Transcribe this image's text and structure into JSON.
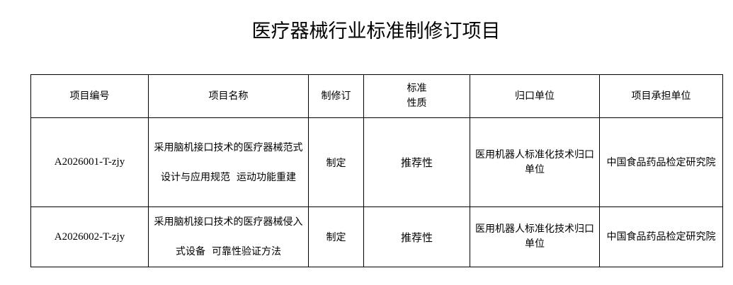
{
  "title": "医疗器械行业标准制修订项目",
  "table": {
    "headers": [
      "项目编号",
      "项目名称",
      "制修订",
      "标准\n性质",
      "归口单位",
      "项目承担单位"
    ],
    "rows": [
      {
        "id": "A2026001-T-zjy",
        "name": "采用脑机接口技术的医疗器械范式设计与应用规范  运动功能重建",
        "type": "制定",
        "nature": "推荐性",
        "unit": "医用机器人标准化技术归口单位",
        "org": "中国食品药品检定研究院"
      },
      {
        "id": "A2026002-T-zjy",
        "name": "采用脑机接口技术的医疗器械侵入式设备  可靠性验证方法",
        "type": "制定",
        "nature": "推荐性",
        "unit": "医用机器人标准化技术归口单位",
        "org": "中国食品药品检定研究院"
      }
    ]
  }
}
